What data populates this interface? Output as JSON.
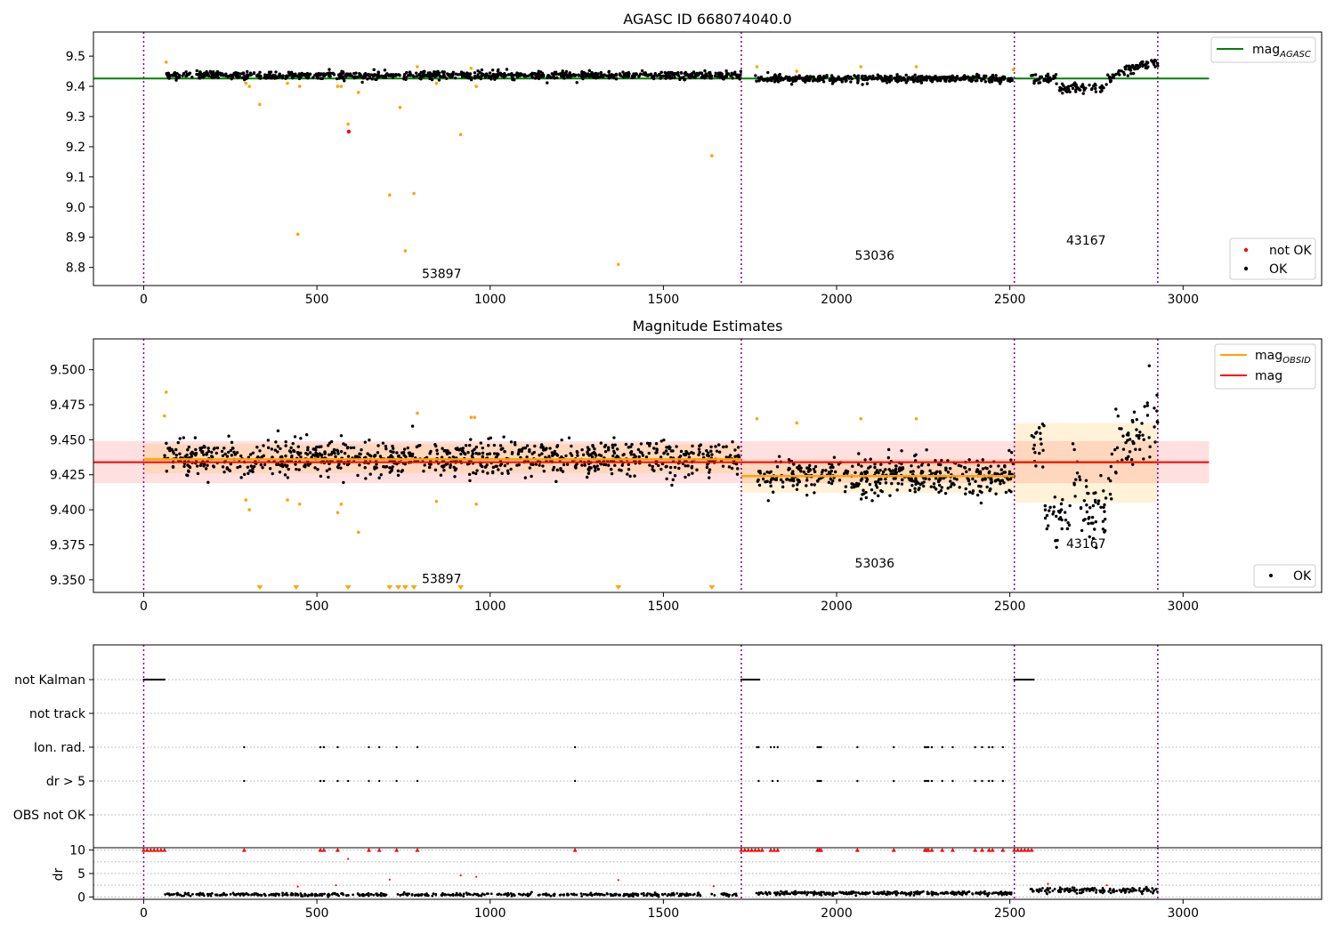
{
  "chart_data": [
    {
      "type": "scatter",
      "title": "AGASC ID 668074040.0",
      "xlim": [
        -145,
        3400
      ],
      "ylim": [
        8.74,
        9.58
      ],
      "x_ticks": [
        0,
        500,
        1000,
        1500,
        2000,
        2500,
        3000
      ],
      "x_tick_labels": [
        "0",
        "500",
        "1000",
        "1500",
        "2000",
        "2500",
        "3000"
      ],
      "y_ticks": [
        8.8,
        8.9,
        9.0,
        9.1,
        9.2,
        9.3,
        9.4,
        9.5
      ],
      "y_tick_labels": [
        "8.8",
        "8.9",
        "9.0",
        "9.1",
        "9.2",
        "9.3",
        "9.4",
        "9.5"
      ],
      "obsid_boundaries": [
        0,
        1725,
        2513,
        2927
      ],
      "obsid_labels": [
        {
          "text": "53897",
          "x": 860,
          "y": 8.78
        },
        {
          "text": "53036",
          "x": 2110,
          "y": 8.84
        },
        {
          "text": "43167",
          "x": 2720,
          "y": 8.89
        }
      ],
      "reference_line": {
        "name": "mag_AGASC",
        "y": 9.426,
        "x_range": [
          -145,
          3075
        ],
        "color": "#008000"
      },
      "ok_segments": [
        {
          "x_range": [
            60,
            1725
          ],
          "center": 9.437,
          "spread": 0.011,
          "count": 900
        },
        {
          "x_range": [
            1765,
            2513
          ],
          "center": 9.425,
          "spread": 0.011,
          "count": 420
        },
        {
          "x_range": [
            2560,
            2927
          ],
          "center": 9.425,
          "spread": 0.015,
          "count": 170
        }
      ],
      "outliers": [
        [
          65,
          9.48
        ],
        [
          295,
          9.41
        ],
        [
          305,
          9.4
        ],
        [
          335,
          9.34
        ],
        [
          415,
          9.41
        ],
        [
          445,
          8.91
        ],
        [
          450,
          9.4
        ],
        [
          560,
          9.4
        ],
        [
          570,
          9.4
        ],
        [
          590,
          9.275
        ],
        [
          620,
          9.38
        ],
        [
          710,
          9.04
        ],
        [
          740,
          9.33
        ],
        [
          755,
          8.855
        ],
        [
          780,
          9.045
        ],
        [
          790,
          9.465
        ],
        [
          845,
          9.41
        ],
        [
          915,
          9.24
        ],
        [
          945,
          9.46
        ],
        [
          960,
          9.4
        ],
        [
          1370,
          8.81
        ],
        [
          1640,
          9.17
        ],
        [
          1770,
          9.465
        ],
        [
          1885,
          9.45
        ],
        [
          2070,
          9.465
        ],
        [
          2230,
          9.465
        ],
        [
          2510,
          9.455
        ]
      ],
      "not_ok_points": [
        [
          592,
          9.25
        ]
      ],
      "legend": {
        "entries": [
          {
            "label": "mag",
            "sub": "AGASC"
          }
        ],
        "position": "top-right"
      },
      "legend2": {
        "entries": [
          {
            "label": "not OK",
            "color": "#ff0000"
          },
          {
            "label": "OK",
            "color": "#000000"
          }
        ],
        "position": "bottom-right"
      }
    },
    {
      "type": "scatter",
      "title": "Magnitude Estimates",
      "xlim": [
        -145,
        3400
      ],
      "ylim": [
        9.341,
        9.522
      ],
      "x_ticks": [
        0,
        500,
        1000,
        1500,
        2000,
        2500,
        3000
      ],
      "x_tick_labels": [
        "0",
        "500",
        "1000",
        "1500",
        "2000",
        "2500",
        "3000"
      ],
      "y_ticks": [
        9.35,
        9.375,
        9.4,
        9.425,
        9.45,
        9.475,
        9.5
      ],
      "y_tick_labels": [
        "9.350",
        "9.375",
        "9.400",
        "9.425",
        "9.450",
        "9.475",
        "9.500"
      ],
      "obsid_boundaries": [
        0,
        1725,
        2513,
        2927
      ],
      "obsid_labels": [
        {
          "text": "53897",
          "x": 860,
          "y": 9.351
        },
        {
          "text": "53036",
          "x": 2110,
          "y": 9.362
        },
        {
          "text": "43167",
          "x": 2720,
          "y": 9.376
        }
      ],
      "mag_line": {
        "name": "mag",
        "y": 9.434,
        "x_range": [
          -145,
          3075
        ],
        "band": [
          9.419,
          9.449
        ],
        "color": "#ff0000"
      },
      "obsid_mag_segments": [
        {
          "x_range": [
            0,
            1725
          ],
          "y": 9.436,
          "band": [
            9.426,
            9.447
          ]
        },
        {
          "x_range": [
            1725,
            2513
          ],
          "y": 9.424,
          "band": [
            9.412,
            9.436
          ]
        },
        {
          "x_range": [
            2513,
            2927
          ],
          "y": 9.434,
          "band": [
            9.405,
            9.462
          ]
        }
      ],
      "ok_segments": [
        {
          "x_range": [
            60,
            1725
          ],
          "center": 9.437,
          "spread": 0.011,
          "count": 900
        },
        {
          "x_range": [
            1765,
            2513
          ],
          "center": 9.424,
          "spread": 0.012,
          "count": 420
        },
        {
          "x_range": [
            2560,
            2927
          ],
          "center": 9.428,
          "spread": 0.022,
          "count": 170
        }
      ],
      "outliers": [
        [
          60,
          9.467
        ],
        [
          65,
          9.484
        ],
        [
          295,
          9.407
        ],
        [
          305,
          9.4
        ],
        [
          415,
          9.407
        ],
        [
          450,
          9.404
        ],
        [
          560,
          9.398
        ],
        [
          570,
          9.404
        ],
        [
          620,
          9.384
        ],
        [
          790,
          9.469
        ],
        [
          845,
          9.406
        ],
        [
          945,
          9.466
        ],
        [
          955,
          9.466
        ],
        [
          960,
          9.404
        ],
        [
          1770,
          9.465
        ],
        [
          1885,
          9.462
        ],
        [
          2070,
          9.465
        ],
        [
          2230,
          9.465
        ]
      ],
      "off_scale_markers": [
        335,
        440,
        590,
        710,
        735,
        755,
        780,
        915,
        1370,
        1640
      ],
      "legend": {
        "entries": [
          {
            "label": "mag",
            "sub": "OBSID",
            "color": "#ffa500"
          },
          {
            "label": "mag",
            "color": "#ff0000"
          }
        ],
        "position": "top-right"
      },
      "legend2": {
        "entries": [
          {
            "label": "OK",
            "color": "#000000"
          }
        ],
        "position": "bottom-right"
      }
    },
    {
      "type": "scatter",
      "title": "",
      "xlim": [
        -145,
        3400
      ],
      "flag_rows": [
        "not Kalman",
        "not track",
        "Ion. rad.",
        "dr > 5",
        "OBS not OK"
      ],
      "flags": {
        "not Kalman": {
          "ranges": [
            [
              0,
              60
            ],
            [
              1725,
              1780
            ],
            [
              2513,
              2570
            ]
          ]
        },
        "not track": {
          "points": []
        },
        "Ion. rad.": {
          "points": [
            290,
            510,
            520,
            560,
            650,
            680,
            730,
            790,
            1245,
            1770,
            1775,
            1810,
            1820,
            1830,
            1945,
            1950,
            1955,
            2060,
            2165,
            2255,
            2260,
            2265,
            2275,
            2305,
            2335,
            2400,
            2420,
            2440,
            2450,
            2480
          ]
        },
        "dr > 5": {
          "points": [
            290,
            510,
            520,
            560,
            590,
            650,
            680,
            730,
            790,
            1245,
            1775,
            1815,
            1830,
            1945,
            1950,
            1955,
            2060,
            2165,
            2255,
            2260,
            2265,
            2275,
            2305,
            2335,
            2400,
            2420,
            2440,
            2450,
            2480
          ]
        }
      }
    },
    {
      "type": "scatter",
      "ylabel": "dr",
      "xlim": [
        -145,
        3400
      ],
      "ylim": [
        -0.5,
        10.5
      ],
      "x_ticks": [
        0,
        500,
        1000,
        1500,
        2000,
        2500,
        3000
      ],
      "x_tick_labels": [
        "0",
        "500",
        "1000",
        "1500",
        "2000",
        "2500",
        "3000"
      ],
      "y_ticks": [
        0,
        5,
        10
      ],
      "y_tick_labels": [
        "0",
        "5",
        "10"
      ],
      "capped_markers": [
        0,
        10,
        20,
        30,
        40,
        50,
        60,
        290,
        510,
        520,
        560,
        650,
        680,
        730,
        790,
        1245,
        1725,
        1735,
        1745,
        1755,
        1765,
        1775,
        1785,
        1810,
        1820,
        1830,
        1945,
        1950,
        1955,
        2060,
        2165,
        2255,
        2260,
        2265,
        2275,
        2305,
        2335,
        2400,
        2420,
        2440,
        2450,
        2480,
        2513,
        2523,
        2533,
        2543,
        2553,
        2563
      ],
      "outliers": [
        [
          445,
          2.2
        ],
        [
          590,
          8.1
        ],
        [
          710,
          3.7
        ],
        [
          915,
          4.6
        ],
        [
          960,
          4.3
        ],
        [
          1370,
          3.6
        ],
        [
          555,
          2.5
        ],
        [
          1645,
          2.3
        ],
        [
          2610,
          2.8
        ],
        [
          2780,
          2.5
        ]
      ],
      "segments": [
        {
          "x_range": [
            60,
            1725
          ],
          "level": 0.5,
          "spread": 0.25,
          "count": 500
        },
        {
          "x_range": [
            1765,
            2513
          ],
          "level": 0.8,
          "spread": 0.3,
          "count": 320
        },
        {
          "x_range": [
            2560,
            2927
          ],
          "level": 1.4,
          "spread": 0.5,
          "count": 150
        }
      ]
    }
  ]
}
